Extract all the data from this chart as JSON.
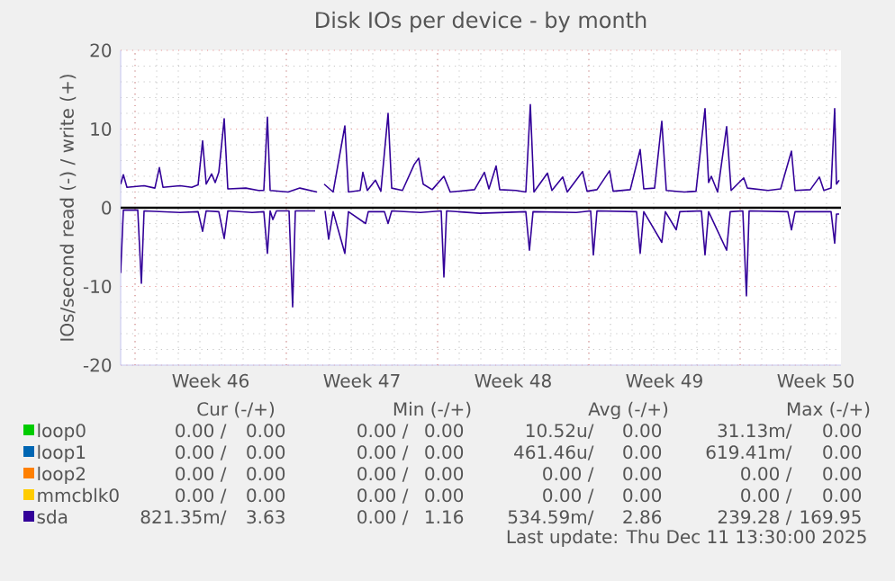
{
  "chart_data": {
    "type": "line",
    "title": "Disk IOs per device - by month",
    "ylabel": "IOs/second read (-) / write (+)",
    "xlim": [
      "2025-11-08T08:00",
      "2025-12-11T16:00"
    ],
    "xticks": [
      {
        "value": "2025-11-09T00:00",
        "label": null
      },
      {
        "value": "2025-11-12T12:00",
        "label": "Week 46"
      },
      {
        "value": "2025-11-16T00:00",
        "label": null
      },
      {
        "value": "2025-11-19T12:00",
        "label": "Week 47"
      },
      {
        "value": "2025-11-23T00:00",
        "label": null
      },
      {
        "value": "2025-11-26T12:00",
        "label": "Week 48"
      },
      {
        "value": "2025-11-30T00:00",
        "label": null
      },
      {
        "value": "2025-12-03T12:00",
        "label": "Week 49"
      },
      {
        "value": "2025-12-07T00:00",
        "label": null
      },
      {
        "value": "2025-12-10T12:00",
        "label": "Week 50"
      }
    ],
    "ylim": [
      -20,
      20
    ],
    "yticks": [
      -20,
      -10,
      0,
      10,
      20
    ],
    "grid": true,
    "legend": "bottom",
    "marker": "none",
    "line_style": "solid",
    "ref_lines": [
      {
        "axis": "y",
        "value": 0,
        "color": "#000000"
      }
    ],
    "series": [
      {
        "name": "loop0",
        "color": "#00cc00"
      },
      {
        "name": "loop1",
        "color": "#0066b3"
      },
      {
        "name": "loop2",
        "color": "#ff8000"
      },
      {
        "name": "mmcblk0",
        "color": "#ffcc00"
      },
      {
        "name": "sda",
        "color": "#330099",
        "x": [
          "2025-11-08T08:00",
          "2025-11-08T11:00",
          "2025-11-08T15:00",
          "2025-11-09T10:00",
          "2025-11-09T22:00",
          "2025-11-10T03:00",
          "2025-11-10T07:00",
          "2025-11-11T02:00",
          "2025-11-11T15:00",
          "2025-11-11T22:00",
          "2025-11-12T03:00",
          "2025-11-12T07:00",
          "2025-11-12T13:00",
          "2025-11-12T17:00",
          "2025-11-12T21:00",
          "2025-11-13T03:00",
          "2025-11-13T07:00",
          "2025-11-14T03:00",
          "2025-11-14T17:00",
          "2025-11-14T23:00",
          "2025-11-15T03:00",
          "2025-11-15T06:00",
          "2025-11-16T02:00",
          "2025-11-16T15:00",
          "2025-11-17T10:00",
          "2025-11-17T14:00",
          "2025-11-17T18:00",
          "2025-11-18T04:00",
          "2025-11-18T17:00",
          "2025-11-18T21:00",
          "2025-11-19T10:00",
          "2025-11-19T13:00",
          "2025-11-19T18:00",
          "2025-11-20T03:00",
          "2025-11-20T09:00",
          "2025-11-20T17:00",
          "2025-11-20T21:00",
          "2025-11-21T09:00",
          "2025-11-21T22:00",
          "2025-11-22T03:00",
          "2025-11-22T08:00",
          "2025-11-22T18:00",
          "2025-11-23T07:00",
          "2025-11-23T14:00",
          "2025-11-24T17:00",
          "2025-11-25T04:00",
          "2025-11-25T09:00",
          "2025-11-25T17:00",
          "2025-11-25T21:00",
          "2025-11-26T15:00",
          "2025-11-27T02:00",
          "2025-11-27T07:00",
          "2025-11-27T11:00",
          "2025-11-28T02:00",
          "2025-11-28T07:00",
          "2025-11-28T19:00",
          "2025-11-29T00:00",
          "2025-11-29T17:00",
          "2025-11-29T22:00",
          "2025-11-30T09:00",
          "2025-11-30T23:00",
          "2025-12-01T03:00",
          "2025-12-01T22:00",
          "2025-12-02T09:00",
          "2025-12-02T13:00",
          "2025-12-03T01:00",
          "2025-12-03T09:00",
          "2025-12-03T14:00",
          "2025-12-04T10:00",
          "2025-12-04T23:00",
          "2025-12-05T09:00",
          "2025-12-05T13:00",
          "2025-12-05T16:00",
          "2025-12-05T23:00",
          "2025-12-06T09:00",
          "2025-12-06T14:00",
          "2025-12-07T04:00",
          "2025-12-07T08:00",
          "2025-12-08T07:00",
          "2025-12-08T21:00",
          "2025-12-09T09:00",
          "2025-12-09T13:00",
          "2025-12-10T06:00",
          "2025-12-10T16:00",
          "2025-12-10T21:00",
          "2025-12-11T05:00",
          "2025-12-11T09:00",
          "2025-12-11T11:00",
          "2025-12-11T14:00"
        ],
        "values": [
          3.0,
          4.2,
          2.6,
          2.8,
          2.5,
          5.1,
          2.6,
          2.8,
          2.6,
          2.9,
          8.5,
          3.0,
          4.3,
          3.2,
          4.5,
          11.3,
          2.4,
          2.5,
          2.2,
          2.2,
          11.5,
          2.2,
          2.0,
          2.5,
          2.0,
          null,
          3.0,
          2.0,
          10.4,
          2.0,
          2.2,
          4.5,
          2.2,
          3.5,
          2.1,
          12.0,
          2.5,
          2.2,
          5.5,
          6.3,
          3.0,
          2.3,
          4.0,
          2.0,
          2.3,
          4.5,
          2.4,
          5.3,
          2.3,
          2.2,
          2.0,
          13.1,
          2.0,
          4.4,
          2.2,
          3.9,
          2.0,
          4.6,
          2.1,
          2.3,
          4.7,
          2.1,
          2.3,
          7.4,
          2.4,
          2.5,
          11.0,
          2.2,
          2.0,
          2.1,
          12.6,
          3.2,
          4.0,
          2.0,
          10.3,
          2.2,
          3.8,
          2.5,
          2.2,
          2.4,
          7.2,
          2.2,
          2.3,
          3.9,
          2.2,
          2.5,
          12.6,
          3.0,
          3.5
        ]
      },
      {
        "color": "#330099",
        "x": [
          "2025-11-08T08:00",
          "2025-11-08T11:00",
          "2025-11-09T03:00",
          "2025-11-09T07:00",
          "2025-11-09T10:00",
          "2025-11-11T02:00",
          "2025-11-11T22:00",
          "2025-11-12T03:00",
          "2025-11-12T07:00",
          "2025-11-12T21:00",
          "2025-11-13T03:00",
          "2025-11-13T07:00",
          "2025-11-14T10:00",
          "2025-11-14T23:00",
          "2025-11-15T03:00",
          "2025-11-15T06:00",
          "2025-11-15T09:00",
          "2025-11-15T13:00",
          "2025-11-16T03:00",
          "2025-11-16T07:00",
          "2025-11-16T10:00",
          "2025-11-17T08:00",
          "2025-11-17T14:00",
          "2025-11-17T19:00",
          "2025-11-17T23:00",
          "2025-11-18T04:00",
          "2025-11-18T17:00",
          "2025-11-18T21:00",
          "2025-11-19T16:00",
          "2025-11-19T19:00",
          "2025-11-20T13:00",
          "2025-11-20T17:00",
          "2025-11-20T21:00",
          "2025-11-22T05:00",
          "2025-11-23T04:00",
          "2025-11-23T07:00",
          "2025-11-23T10:00",
          "2025-11-24T23:00",
          "2025-11-27T02:00",
          "2025-11-27T06:00",
          "2025-11-27T10:00",
          "2025-11-29T10:00",
          "2025-11-30T02:00",
          "2025-11-30T05:00",
          "2025-11-30T09:00",
          "2025-12-02T05:00",
          "2025-12-02T09:00",
          "2025-12-02T13:00",
          "2025-12-03T09:00",
          "2025-12-03T13:00",
          "2025-12-04T01:00",
          "2025-12-04T05:00",
          "2025-12-05T05:00",
          "2025-12-05T09:00",
          "2025-12-05T13:00",
          "2025-12-06T09:00",
          "2025-12-06T13:00",
          "2025-12-07T03:00",
          "2025-12-07T07:00",
          "2025-12-07T10:00",
          "2025-12-09T05:00",
          "2025-12-09T09:00",
          "2025-12-09T13:00",
          "2025-12-11T05:00",
          "2025-12-11T09:00",
          "2025-12-11T11:00",
          "2025-12-11T14:00"
        ],
        "values": [
          -8.3,
          -0.3,
          -0.3,
          -9.6,
          -0.4,
          -0.6,
          -0.5,
          -3.0,
          -0.4,
          -0.5,
          -3.9,
          -0.4,
          -0.6,
          -0.5,
          -5.8,
          -0.4,
          -1.5,
          -0.4,
          -0.4,
          -12.6,
          -0.4,
          -0.4,
          null,
          -0.4,
          -4.0,
          -0.5,
          -5.8,
          -0.5,
          -2.0,
          -0.5,
          -0.5,
          -2.0,
          -0.4,
          -0.6,
          -0.4,
          -8.8,
          -0.4,
          -0.7,
          -0.5,
          -5.4,
          -0.5,
          -0.6,
          -0.4,
          -6.0,
          -0.4,
          -0.5,
          -5.8,
          -0.5,
          -4.4,
          -0.5,
          -2.8,
          -0.5,
          -0.4,
          -6.0,
          -0.5,
          -5.4,
          -0.5,
          -0.4,
          -11.2,
          -0.4,
          -0.5,
          -2.8,
          -0.5,
          -0.5,
          -4.5,
          -0.8,
          -0.8
        ]
      }
    ],
    "annotations": [
      "Cur (-/+)",
      "Min (-/+)",
      "Avg (-/+)",
      "Max (-/+)",
      "0.00 /",
      "0.00",
      "0.00 /",
      "0.00",
      "10.52u/",
      "0.00",
      "31.13m/",
      "0.00",
      "0.00 /",
      "0.00",
      "0.00 /",
      "0.00",
      "461.46u/",
      "0.00",
      "619.41m/",
      "0.00",
      "0.00 /",
      "0.00",
      "0.00 /",
      "0.00",
      "0.00 /",
      "0.00",
      "0.00 /",
      "0.00",
      "0.00 /",
      "0.00",
      "0.00 /",
      "0.00",
      "0.00 /",
      "0.00",
      "0.00 /",
      "0.00",
      "821.35m/",
      "3.63",
      "0.00 /",
      "1.16",
      "534.59m/",
      "2.86",
      "239.28 /",
      "169.95",
      "Last update: Thu Dec 11 13:30:00 2025"
    ]
  }
}
